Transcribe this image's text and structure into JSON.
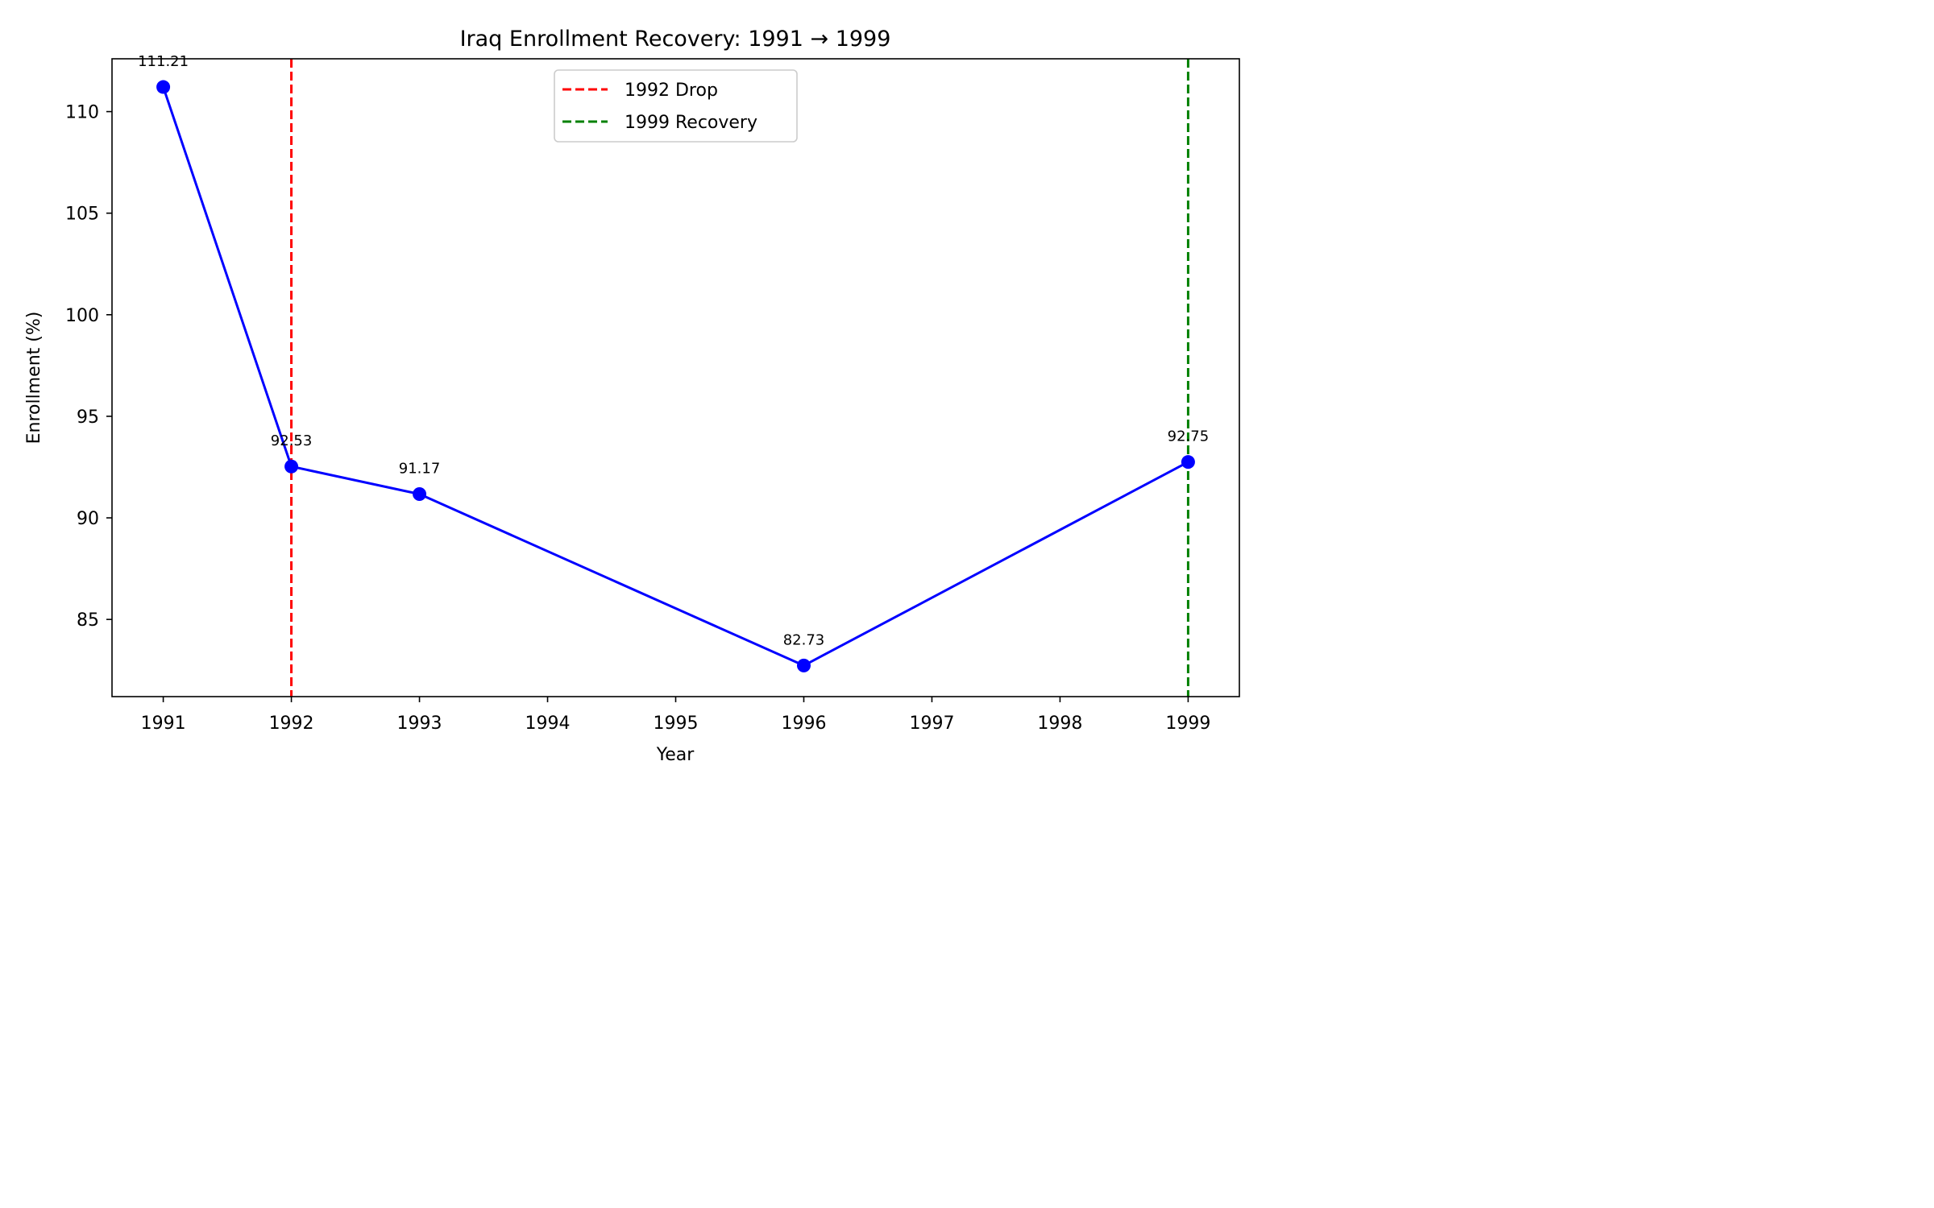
{
  "chart_data": {
    "type": "line",
    "title": "Iraq Enrollment Recovery: 1991 → 1999",
    "xlabel": "Year",
    "ylabel": "Enrollment (%)",
    "xlim": [
      1990.6,
      1999.4
    ],
    "ylim": [
      81.2,
      112.6
    ],
    "x_ticks": [
      1991,
      1992,
      1993,
      1994,
      1995,
      1996,
      1997,
      1998,
      1999
    ],
    "y_ticks": [
      85,
      90,
      95,
      100,
      105,
      110
    ],
    "grid": false,
    "series": [
      {
        "x": [
          1991,
          1992,
          1993,
          1996,
          1999
        ],
        "y": [
          111.21,
          92.53,
          91.17,
          82.73,
          92.75
        ],
        "data_labels": [
          "111.21",
          "92.53",
          "91.17",
          "82.73",
          "92.75"
        ],
        "color": "#0000ff",
        "marker": "circle"
      }
    ],
    "reference_lines": [
      {
        "x": 1992,
        "name": "1992 Drop",
        "color": "#ff0000",
        "style": "dashed"
      },
      {
        "x": 1999,
        "name": "1999 Recovery",
        "color": "#008000",
        "style": "dashed"
      }
    ],
    "legend": {
      "position": "top-center",
      "entries": [
        "1992 Drop",
        "1999 Recovery"
      ]
    }
  }
}
